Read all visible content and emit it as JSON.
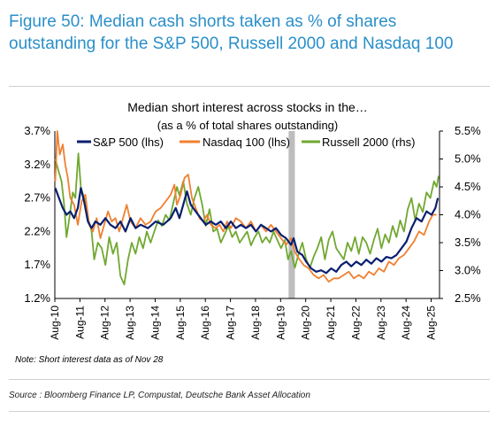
{
  "header": {
    "title": "Figure 50: Median cash shorts taken as % of shares outstanding for the S&P 500, Russell 2000 and Nasdaq 100"
  },
  "footer": {
    "note": "Note: Short interest data as of Nov 28",
    "source": "Source : Bloomberg Finance LP, Compustat, Deutsche Bank Asset Allocation"
  },
  "chart_data": {
    "type": "line",
    "title": "Median short interest across stocks in the…",
    "subtitle": "(as a % of total shares outstanding)",
    "x_ticks": [
      "Aug-10",
      "Aug-11",
      "Aug-12",
      "Aug-13",
      "Aug-14",
      "Aug-15",
      "Aug-16",
      "Aug-17",
      "Aug-18",
      "Aug-19",
      "Aug-20",
      "Aug-21",
      "Aug-22",
      "Aug-23",
      "Aug-24",
      "Aug-25"
    ],
    "xlim": [
      2010.583,
      2025.917
    ],
    "y_left": {
      "ticks": [
        "1.2%",
        "1.7%",
        "2.2%",
        "2.7%",
        "3.2%",
        "3.7%"
      ],
      "lim": [
        1.2,
        3.7
      ]
    },
    "y_right": {
      "ticks": [
        "2.5%",
        "3.0%",
        "3.5%",
        "4.0%",
        "4.5%",
        "5.0%",
        "5.5%"
      ],
      "lim": [
        2.5,
        5.5
      ]
    },
    "shaded_band": [
      2019.9,
      2020.15
    ],
    "grid": false,
    "legend_position": "top",
    "series": [
      {
        "name": "S&P 500 (lhs)",
        "axis": "left",
        "color": "#0a1f6e",
        "points": [
          [
            2010.6,
            2.85
          ],
          [
            2010.75,
            2.7
          ],
          [
            2010.9,
            2.55
          ],
          [
            2011.05,
            2.45
          ],
          [
            2011.2,
            2.5
          ],
          [
            2011.35,
            2.4
          ],
          [
            2011.5,
            2.55
          ],
          [
            2011.62,
            2.85
          ],
          [
            2011.75,
            2.65
          ],
          [
            2011.9,
            2.35
          ],
          [
            2012.05,
            2.25
          ],
          [
            2012.2,
            2.35
          ],
          [
            2012.4,
            2.3
          ],
          [
            2012.6,
            2.4
          ],
          [
            2012.8,
            2.3
          ],
          [
            2013.0,
            2.25
          ],
          [
            2013.2,
            2.35
          ],
          [
            2013.4,
            2.2
          ],
          [
            2013.6,
            2.4
          ],
          [
            2013.8,
            2.25
          ],
          [
            2014.0,
            2.3
          ],
          [
            2014.3,
            2.25
          ],
          [
            2014.6,
            2.35
          ],
          [
            2014.9,
            2.3
          ],
          [
            2015.2,
            2.4
          ],
          [
            2015.4,
            2.55
          ],
          [
            2015.55,
            2.4
          ],
          [
            2015.7,
            2.6
          ],
          [
            2015.85,
            2.8
          ],
          [
            2016.0,
            2.6
          ],
          [
            2016.2,
            2.5
          ],
          [
            2016.4,
            2.4
          ],
          [
            2016.6,
            2.3
          ],
          [
            2016.8,
            2.35
          ],
          [
            2017.0,
            2.3
          ],
          [
            2017.2,
            2.35
          ],
          [
            2017.4,
            2.25
          ],
          [
            2017.6,
            2.35
          ],
          [
            2017.8,
            2.25
          ],
          [
            2018.0,
            2.3
          ],
          [
            2018.2,
            2.25
          ],
          [
            2018.4,
            2.3
          ],
          [
            2018.6,
            2.2
          ],
          [
            2018.8,
            2.3
          ],
          [
            2019.0,
            2.25
          ],
          [
            2019.2,
            2.2
          ],
          [
            2019.4,
            2.25
          ],
          [
            2019.6,
            2.15
          ],
          [
            2019.8,
            2.1
          ],
          [
            2020.0,
            2.0
          ],
          [
            2020.1,
            2.1
          ],
          [
            2020.25,
            1.9
          ],
          [
            2020.45,
            1.85
          ],
          [
            2020.6,
            1.75
          ],
          [
            2020.8,
            1.65
          ],
          [
            2021.0,
            1.6
          ],
          [
            2021.2,
            1.62
          ],
          [
            2021.4,
            1.58
          ],
          [
            2021.6,
            1.65
          ],
          [
            2021.8,
            1.6
          ],
          [
            2022.0,
            1.7
          ],
          [
            2022.2,
            1.75
          ],
          [
            2022.4,
            1.68
          ],
          [
            2022.6,
            1.75
          ],
          [
            2022.8,
            1.7
          ],
          [
            2023.0,
            1.78
          ],
          [
            2023.2,
            1.72
          ],
          [
            2023.4,
            1.8
          ],
          [
            2023.6,
            1.75
          ],
          [
            2023.8,
            1.82
          ],
          [
            2024.0,
            1.8
          ],
          [
            2024.2,
            1.85
          ],
          [
            2024.4,
            1.95
          ],
          [
            2024.6,
            2.05
          ],
          [
            2024.8,
            2.25
          ],
          [
            2025.0,
            2.4
          ],
          [
            2025.2,
            2.35
          ],
          [
            2025.4,
            2.5
          ],
          [
            2025.6,
            2.45
          ],
          [
            2025.75,
            2.55
          ],
          [
            2025.85,
            2.7
          ]
        ]
      },
      {
        "name": "Nasdaq 100 (lhs)",
        "axis": "left",
        "color": "#f08030",
        "points": [
          [
            2010.6,
            2.95
          ],
          [
            2010.68,
            3.7
          ],
          [
            2010.78,
            3.35
          ],
          [
            2010.9,
            3.5
          ],
          [
            2011.0,
            3.2
          ],
          [
            2011.1,
            3.0
          ],
          [
            2011.2,
            2.7
          ],
          [
            2011.35,
            2.6
          ],
          [
            2011.5,
            2.3
          ],
          [
            2011.65,
            2.65
          ],
          [
            2011.8,
            2.75
          ],
          [
            2011.95,
            2.3
          ],
          [
            2012.1,
            2.2
          ],
          [
            2012.25,
            2.4
          ],
          [
            2012.4,
            2.1
          ],
          [
            2012.55,
            2.3
          ],
          [
            2012.7,
            2.5
          ],
          [
            2012.85,
            2.35
          ],
          [
            2013.0,
            2.4
          ],
          [
            2013.15,
            2.2
          ],
          [
            2013.3,
            2.4
          ],
          [
            2013.45,
            2.6
          ],
          [
            2013.6,
            2.35
          ],
          [
            2013.8,
            2.25
          ],
          [
            2014.0,
            2.4
          ],
          [
            2014.2,
            2.3
          ],
          [
            2014.4,
            2.35
          ],
          [
            2014.6,
            2.5
          ],
          [
            2014.8,
            2.55
          ],
          [
            2015.0,
            2.65
          ],
          [
            2015.2,
            2.75
          ],
          [
            2015.35,
            2.9
          ],
          [
            2015.45,
            2.6
          ],
          [
            2015.6,
            2.75
          ],
          [
            2015.75,
            3.0
          ],
          [
            2015.9,
            3.05
          ],
          [
            2016.05,
            2.7
          ],
          [
            2016.2,
            2.55
          ],
          [
            2016.35,
            2.4
          ],
          [
            2016.5,
            2.35
          ],
          [
            2016.65,
            2.45
          ],
          [
            2016.8,
            2.3
          ],
          [
            2017.0,
            2.25
          ],
          [
            2017.15,
            2.3
          ],
          [
            2017.3,
            2.2
          ],
          [
            2017.45,
            2.35
          ],
          [
            2017.6,
            2.25
          ],
          [
            2017.8,
            2.4
          ],
          [
            2018.0,
            2.35
          ],
          [
            2018.2,
            2.25
          ],
          [
            2018.4,
            2.35
          ],
          [
            2018.6,
            2.2
          ],
          [
            2018.8,
            2.3
          ],
          [
            2019.0,
            2.2
          ],
          [
            2019.2,
            2.3
          ],
          [
            2019.4,
            2.2
          ],
          [
            2019.6,
            2.1
          ],
          [
            2019.8,
            2.0
          ],
          [
            2020.0,
            2.1
          ],
          [
            2020.15,
            1.9
          ],
          [
            2020.3,
            1.8
          ],
          [
            2020.5,
            1.7
          ],
          [
            2020.7,
            1.65
          ],
          [
            2020.9,
            1.55
          ],
          [
            2021.1,
            1.5
          ],
          [
            2021.3,
            1.55
          ],
          [
            2021.5,
            1.45
          ],
          [
            2021.7,
            1.5
          ],
          [
            2021.9,
            1.5
          ],
          [
            2022.1,
            1.55
          ],
          [
            2022.3,
            1.6
          ],
          [
            2022.5,
            1.5
          ],
          [
            2022.7,
            1.55
          ],
          [
            2022.9,
            1.5
          ],
          [
            2023.1,
            1.6
          ],
          [
            2023.3,
            1.55
          ],
          [
            2023.5,
            1.65
          ],
          [
            2023.7,
            1.6
          ],
          [
            2023.9,
            1.75
          ],
          [
            2024.1,
            1.7
          ],
          [
            2024.3,
            1.8
          ],
          [
            2024.5,
            1.85
          ],
          [
            2024.7,
            1.95
          ],
          [
            2024.9,
            2.05
          ],
          [
            2025.1,
            2.2
          ],
          [
            2025.3,
            2.15
          ],
          [
            2025.5,
            2.35
          ],
          [
            2025.65,
            2.45
          ],
          [
            2025.8,
            2.45
          ]
        ]
      },
      {
        "name": "Russell 2000 (rhs)",
        "axis": "right",
        "color": "#70a830",
        "points": [
          [
            2010.6,
            5.0
          ],
          [
            2010.72,
            4.8
          ],
          [
            2010.85,
            4.6
          ],
          [
            2010.95,
            4.2
          ],
          [
            2011.05,
            3.6
          ],
          [
            2011.15,
            3.9
          ],
          [
            2011.3,
            4.4
          ],
          [
            2011.4,
            4.3
          ],
          [
            2011.52,
            5.1
          ],
          [
            2011.62,
            4.5
          ],
          [
            2011.75,
            4.3
          ],
          [
            2011.9,
            3.95
          ],
          [
            2012.05,
            3.7
          ],
          [
            2012.15,
            3.2
          ],
          [
            2012.3,
            3.5
          ],
          [
            2012.45,
            3.4
          ],
          [
            2012.6,
            3.1
          ],
          [
            2012.75,
            3.6
          ],
          [
            2012.9,
            3.3
          ],
          [
            2013.05,
            3.5
          ],
          [
            2013.2,
            2.9
          ],
          [
            2013.35,
            2.75
          ],
          [
            2013.5,
            3.2
          ],
          [
            2013.65,
            3.5
          ],
          [
            2013.8,
            3.3
          ],
          [
            2013.95,
            3.6
          ],
          [
            2014.1,
            3.4
          ],
          [
            2014.25,
            3.7
          ],
          [
            2014.4,
            3.5
          ],
          [
            2014.55,
            3.7
          ],
          [
            2014.7,
            3.9
          ],
          [
            2014.85,
            3.8
          ],
          [
            2015.0,
            4.0
          ],
          [
            2015.15,
            3.9
          ],
          [
            2015.3,
            4.2
          ],
          [
            2015.45,
            4.5
          ],
          [
            2015.55,
            4.35
          ],
          [
            2015.7,
            4.6
          ],
          [
            2015.85,
            4.2
          ],
          [
            2016.0,
            4.0
          ],
          [
            2016.15,
            4.3
          ],
          [
            2016.3,
            4.5
          ],
          [
            2016.45,
            4.2
          ],
          [
            2016.6,
            3.8
          ],
          [
            2016.75,
            4.1
          ],
          [
            2016.9,
            3.7
          ],
          [
            2017.05,
            3.75
          ],
          [
            2017.2,
            3.5
          ],
          [
            2017.35,
            3.65
          ],
          [
            2017.5,
            3.8
          ],
          [
            2017.65,
            3.6
          ],
          [
            2017.8,
            3.7
          ],
          [
            2017.95,
            3.5
          ],
          [
            2018.1,
            3.6
          ],
          [
            2018.25,
            3.7
          ],
          [
            2018.4,
            3.45
          ],
          [
            2018.55,
            3.6
          ],
          [
            2018.7,
            3.7
          ],
          [
            2018.85,
            3.5
          ],
          [
            2019.0,
            3.6
          ],
          [
            2019.15,
            3.5
          ],
          [
            2019.3,
            3.7
          ],
          [
            2019.45,
            3.55
          ],
          [
            2019.6,
            3.4
          ],
          [
            2019.75,
            3.55
          ],
          [
            2019.88,
            3.2
          ],
          [
            2020.0,
            3.35
          ],
          [
            2020.15,
            3.05
          ],
          [
            2020.3,
            3.3
          ],
          [
            2020.45,
            3.5
          ],
          [
            2020.6,
            3.2
          ],
          [
            2020.75,
            3.05
          ],
          [
            2020.9,
            3.25
          ],
          [
            2021.05,
            3.4
          ],
          [
            2021.2,
            3.6
          ],
          [
            2021.35,
            3.2
          ],
          [
            2021.5,
            3.55
          ],
          [
            2021.65,
            3.7
          ],
          [
            2021.8,
            3.4
          ],
          [
            2021.95,
            3.3
          ],
          [
            2022.1,
            3.2
          ],
          [
            2022.25,
            3.5
          ],
          [
            2022.4,
            3.35
          ],
          [
            2022.55,
            3.6
          ],
          [
            2022.7,
            3.3
          ],
          [
            2022.85,
            3.6
          ],
          [
            2023.0,
            3.5
          ],
          [
            2023.15,
            3.3
          ],
          [
            2023.3,
            3.55
          ],
          [
            2023.45,
            3.75
          ],
          [
            2023.6,
            3.4
          ],
          [
            2023.75,
            3.65
          ],
          [
            2023.9,
            3.5
          ],
          [
            2024.05,
            3.8
          ],
          [
            2024.2,
            3.6
          ],
          [
            2024.35,
            3.9
          ],
          [
            2024.5,
            3.7
          ],
          [
            2024.65,
            4.1
          ],
          [
            2024.8,
            4.3
          ],
          [
            2024.95,
            3.9
          ],
          [
            2025.1,
            4.2
          ],
          [
            2025.25,
            4.05
          ],
          [
            2025.4,
            4.4
          ],
          [
            2025.55,
            4.3
          ],
          [
            2025.7,
            4.6
          ],
          [
            2025.8,
            4.5
          ],
          [
            2025.88,
            4.7
          ]
        ]
      }
    ]
  }
}
